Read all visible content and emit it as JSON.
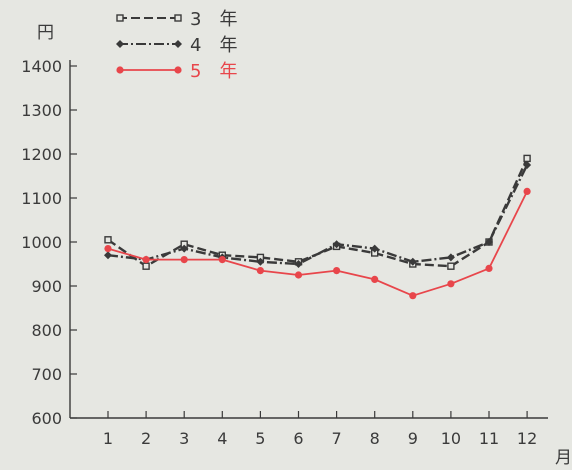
{
  "chart_data": {
    "type": "line",
    "ylabel": "円",
    "xlabel": "月",
    "ylim": [
      600,
      1400
    ],
    "yticks": [
      600,
      700,
      800,
      900,
      1000,
      1100,
      1200,
      1300,
      1400
    ],
    "x": [
      1,
      2,
      3,
      4,
      5,
      6,
      7,
      8,
      9,
      10,
      11,
      12
    ],
    "xtick_labels": [
      "1",
      "2",
      "3",
      "4",
      "5",
      "6",
      "7",
      "8",
      "9",
      "10",
      "11",
      "12"
    ],
    "legend_position": "top-left",
    "grid": false,
    "series": [
      {
        "name": "3　年",
        "color": "#3a3a3a",
        "line_style": "dashed",
        "marker": "open-square",
        "values": [
          1005,
          945,
          995,
          970,
          965,
          955,
          990,
          975,
          950,
          945,
          1000,
          1190
        ]
      },
      {
        "name": "4　年",
        "color": "#3a3a3a",
        "line_style": "dash-dot",
        "marker": "diamond",
        "values": [
          970,
          960,
          985,
          965,
          955,
          950,
          995,
          985,
          955,
          965,
          1000,
          1175
        ]
      },
      {
        "name": "5　年",
        "color": "#e8464b",
        "line_style": "solid",
        "marker": "circle",
        "values": [
          985,
          960,
          960,
          960,
          935,
          925,
          935,
          915,
          878,
          905,
          940,
          1115
        ]
      }
    ]
  }
}
